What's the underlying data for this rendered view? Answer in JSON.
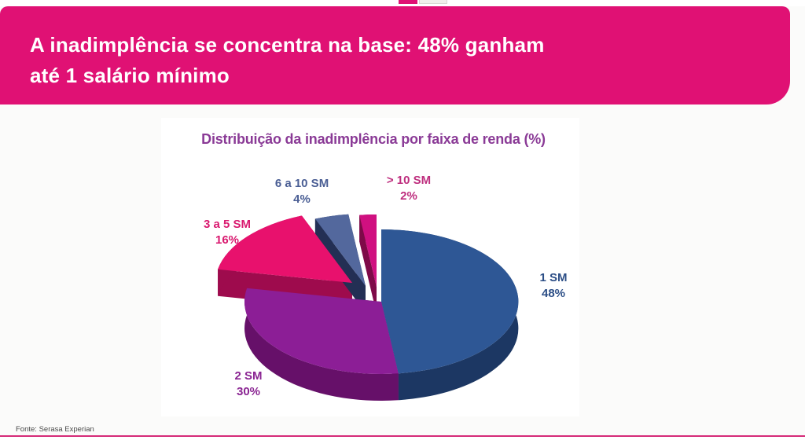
{
  "banner": {
    "title_line1": "A inadimplência se concentra na base: 48% ganham",
    "title_line2": "até 1 salário mínimo",
    "bg_color": "#E01174",
    "text_color": "#FFFFFF"
  },
  "chart_data": {
    "type": "pie",
    "style": "3d-exploded",
    "title": "Distribuição da inadimplência por faixa de renda (%)",
    "title_color": "#8A3A96",
    "legend_position": "labels-around-slices",
    "start_angle_deg": 90,
    "direction": "clockwise",
    "categories": [
      "1 SM",
      "2 SM",
      "3 a 5 SM",
      "6 a 10 SM",
      "> 10 SM"
    ],
    "values": [
      48,
      30,
      16,
      4,
      2
    ],
    "slices": [
      {
        "label": "1 SM",
        "value": 48,
        "display": "48%",
        "exploded": false,
        "color": "#2E5795",
        "side_color": "#1C3763",
        "label_color": "#2C4E86"
      },
      {
        "label": "2 SM",
        "value": 30,
        "display": "30%",
        "exploded": false,
        "color": "#8C1E96",
        "side_color": "#661069",
        "label_color": "#8A2492"
      },
      {
        "label": "3 a 5 SM",
        "value": 16,
        "display": "16%",
        "exploded": true,
        "color": "#E8116D",
        "side_color": "#9E0B4D",
        "label_color": "#D9196F"
      },
      {
        "label": "6 a 10 SM",
        "value": 4,
        "display": "4%",
        "exploded": true,
        "color": "#53689D",
        "side_color": "#232F54",
        "label_color": "#4A5E94"
      },
      {
        "label": "> 10 SM",
        "value": 2,
        "display": "2%",
        "exploded": true,
        "color": "#D01080",
        "side_color": "#7E0A48",
        "label_color": "#BE2E7E"
      }
    ]
  },
  "footer": {
    "source": "Fonte: Serasa Experian",
    "accent_line_color": "#D52B78"
  }
}
